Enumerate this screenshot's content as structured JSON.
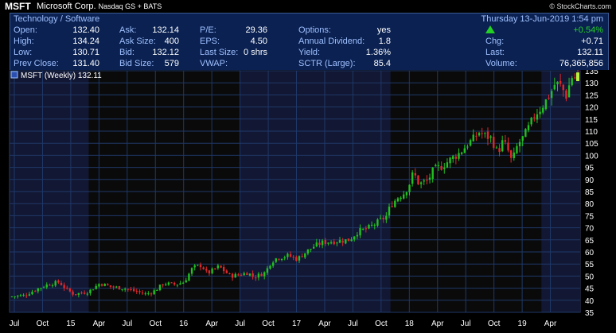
{
  "header": {
    "symbol": "MSFT",
    "company": "Microsoft Corp.",
    "exchange": "Nasdaq GS + BATS",
    "watermark": "© StockCharts.com"
  },
  "info_panel": {
    "sector": "Technology / Software",
    "datetime": "Thursday 13-Jun-2019 1:54 pm",
    "change_pct": "+0.54%",
    "col1": [
      {
        "label": "Open:",
        "value": "132.40"
      },
      {
        "label": "High:",
        "value": "134.24"
      },
      {
        "label": "Low:",
        "value": "130.71"
      },
      {
        "label": "Prev Close:",
        "value": "131.40"
      }
    ],
    "col2": [
      {
        "label": "Ask:",
        "value": "132.14"
      },
      {
        "label": "Ask Size:",
        "value": "400"
      },
      {
        "label": "Bid:",
        "value": "132.12"
      },
      {
        "label": "Bid Size:",
        "value": "579"
      }
    ],
    "col3": [
      {
        "label": "P/E:",
        "value": "29.36"
      },
      {
        "label": "EPS:",
        "value": "4.50"
      },
      {
        "label": "Last Size:",
        "value": "0 shrs"
      },
      {
        "label": "VWAP:",
        "value": ""
      }
    ],
    "col4": [
      {
        "label": "Options:",
        "value": "yes"
      },
      {
        "label": "Annual Dividend:",
        "value": "1.8"
      },
      {
        "label": "Yield:",
        "value": "1.36%"
      },
      {
        "label": "SCTR (Large):",
        "value": "85.4"
      }
    ],
    "col5": [
      {
        "label": "Chg:",
        "value": "+0.71"
      },
      {
        "label": "Last:",
        "value": "132.11"
      },
      {
        "label": "Volume:",
        "value": "76,365,856"
      }
    ]
  },
  "colors": {
    "up": "#22c022",
    "down": "#e0282c",
    "grid": "#1f3868",
    "band": "#121733",
    "panel": "#0a2152",
    "label": "#9fc0ff"
  },
  "chart_data": {
    "type": "candlestick",
    "legend": "MSFT (Weekly) 132.11",
    "ylim": [
      35,
      135
    ],
    "yticks": [
      35,
      40,
      45,
      50,
      55,
      60,
      65,
      70,
      75,
      80,
      85,
      90,
      95,
      100,
      105,
      110,
      115,
      120,
      125,
      130,
      135
    ],
    "xticks": [
      "Jul",
      "Oct",
      "15",
      "Apr",
      "Jul",
      "Oct",
      "16",
      "Apr",
      "Jul",
      "Oct",
      "17",
      "Apr",
      "Jul",
      "Oct",
      "18",
      "Apr",
      "Jul",
      "Oct",
      "19",
      "Apr"
    ],
    "close_path": [
      [
        0,
        41.5
      ],
      [
        5,
        42.0
      ],
      [
        9,
        44.5
      ],
      [
        13,
        46.5
      ],
      [
        17,
        47.5
      ],
      [
        19,
        45.0
      ],
      [
        22,
        42.5
      ],
      [
        27,
        43.5
      ],
      [
        31,
        47.0
      ],
      [
        35,
        45.5
      ],
      [
        39,
        45.0
      ],
      [
        44,
        43.5
      ],
      [
        47,
        42.5
      ],
      [
        50,
        44.0
      ],
      [
        53,
        47.0
      ],
      [
        57,
        46.5
      ],
      [
        60,
        47.5
      ],
      [
        63,
        53.5
      ],
      [
        66,
        54.5
      ],
      [
        68,
        51.0
      ],
      [
        70,
        52.5
      ],
      [
        72,
        54.0
      ],
      [
        76,
        50.0
      ],
      [
        79,
        50.5
      ],
      [
        82,
        51.5
      ],
      [
        84,
        49.5
      ],
      [
        88,
        51.5
      ],
      [
        90,
        56.0
      ],
      [
        92,
        57.5
      ],
      [
        96,
        58.5
      ],
      [
        99,
        57.0
      ],
      [
        102,
        60.0
      ],
      [
        105,
        62.5
      ],
      [
        108,
        64.0
      ],
      [
        113,
        64.5
      ],
      [
        117,
        65.0
      ],
      [
        120,
        68.5
      ],
      [
        123,
        69.5
      ],
      [
        127,
        72.5
      ],
      [
        130,
        75.0
      ],
      [
        131,
        79.0
      ],
      [
        134,
        83.0
      ],
      [
        136,
        84.5
      ],
      [
        138,
        89.0
      ],
      [
        139,
        93.0
      ],
      [
        141,
        88.0
      ],
      [
        144,
        89.5
      ],
      [
        146,
        94.0
      ],
      [
        149,
        95.5
      ],
      [
        152,
        98.5
      ],
      [
        155,
        101.0
      ],
      [
        158,
        105.0
      ],
      [
        160,
        107.0
      ],
      [
        162,
        110.0
      ],
      [
        163,
        108.5
      ],
      [
        166,
        107.0
      ],
      [
        168,
        101.0
      ],
      [
        170,
        106.0
      ],
      [
        172,
        101.0
      ],
      [
        173,
        97.0
      ],
      [
        175,
        104.5
      ],
      [
        177,
        107.5
      ],
      [
        179,
        112.0
      ],
      [
        181,
        117.0
      ],
      [
        183,
        119.5
      ],
      [
        186,
        125.0
      ],
      [
        188,
        130.0
      ],
      [
        190,
        128.5
      ],
      [
        192,
        124.0
      ],
      [
        193,
        131.0
      ],
      [
        194,
        133.0
      ],
      [
        194.7,
        132.11
      ]
    ]
  }
}
